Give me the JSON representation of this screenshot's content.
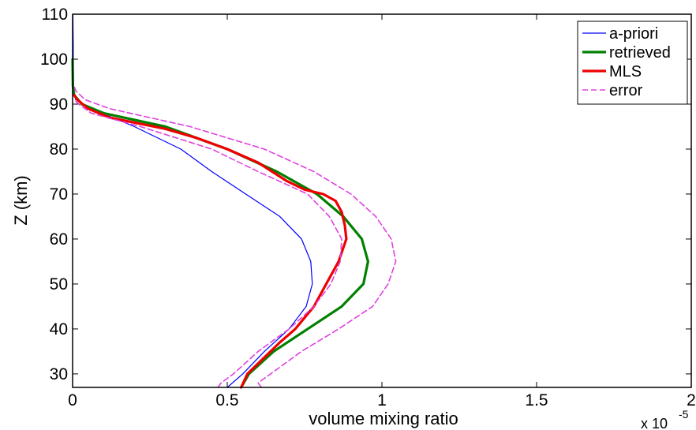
{
  "chart_data": {
    "type": "line",
    "xlabel": "volume mixing ratio",
    "ylabel": "Z (km)",
    "x_exponent_base": "x 10",
    "x_exponent_power": "-5",
    "xlim": [
      0,
      2
    ],
    "ylim": [
      27,
      110
    ],
    "xticks": [
      0,
      0.5,
      1,
      1.5,
      2
    ],
    "xtick_labels": [
      "0",
      "0.5",
      "1",
      "1.5",
      "2"
    ],
    "yticks": [
      30,
      40,
      50,
      60,
      70,
      80,
      90,
      100,
      110
    ],
    "ytick_labels": [
      "30",
      "40",
      "50",
      "60",
      "70",
      "80",
      "90",
      "100",
      "110"
    ],
    "grid": false,
    "legend_position": "top-right",
    "series": [
      {
        "name": "a-priori",
        "color": "#0000ff",
        "style": "solid",
        "points": [
          [
            0.5,
            27
          ],
          [
            0.55,
            30
          ],
          [
            0.62,
            35
          ],
          [
            0.7,
            40
          ],
          [
            0.755,
            45
          ],
          [
            0.775,
            50
          ],
          [
            0.77,
            55
          ],
          [
            0.74,
            60
          ],
          [
            0.67,
            65
          ],
          [
            0.56,
            70
          ],
          [
            0.45,
            75
          ],
          [
            0.35,
            80
          ],
          [
            0.2,
            85
          ],
          [
            0.06,
            89
          ],
          [
            0.01,
            91
          ],
          [
            0.003,
            93
          ],
          [
            0.002,
            97
          ],
          [
            0.002,
            103
          ],
          [
            0.001,
            110
          ]
        ]
      },
      {
        "name": "retrieved",
        "color": "#008000",
        "style": "solid",
        "points": [
          [
            0.545,
            27
          ],
          [
            0.57,
            30
          ],
          [
            0.65,
            35
          ],
          [
            0.76,
            40
          ],
          [
            0.87,
            45
          ],
          [
            0.94,
            50
          ],
          [
            0.955,
            55
          ],
          [
            0.935,
            60
          ],
          [
            0.875,
            65
          ],
          [
            0.79,
            70
          ],
          [
            0.66,
            75
          ],
          [
            0.5,
            80
          ],
          [
            0.3,
            85
          ],
          [
            0.1,
            88
          ],
          [
            0.03,
            90
          ],
          [
            0.005,
            92
          ],
          [
            0.001,
            94
          ],
          [
            0.0,
            100
          ]
        ]
      },
      {
        "name": "MLS",
        "color": "#ee0000",
        "style": "solid",
        "points": [
          [
            0.545,
            27
          ],
          [
            0.565,
            30
          ],
          [
            0.61,
            33
          ],
          [
            0.67,
            37
          ],
          [
            0.72,
            40
          ],
          [
            0.78,
            45
          ],
          [
            0.82,
            50
          ],
          [
            0.86,
            55
          ],
          [
            0.885,
            60
          ],
          [
            0.88,
            63
          ],
          [
            0.87,
            66
          ],
          [
            0.85,
            68.5
          ],
          [
            0.81,
            70
          ],
          [
            0.75,
            71
          ],
          [
            0.69,
            73
          ],
          [
            0.6,
            77
          ],
          [
            0.5,
            80
          ],
          [
            0.4,
            82.5
          ],
          [
            0.3,
            84.5
          ],
          [
            0.12,
            87
          ],
          [
            0.05,
            89
          ],
          [
            0.015,
            91
          ],
          [
            0.005,
            92
          ]
        ]
      },
      {
        "name": "error",
        "color": "#e040e0",
        "style": "dashed",
        "points": [
          [
            0.47,
            27
          ],
          [
            0.48,
            28
          ],
          [
            0.52,
            30
          ],
          [
            0.6,
            35
          ],
          [
            0.7,
            40
          ],
          [
            0.78,
            45
          ],
          [
            0.835,
            50
          ],
          [
            0.865,
            55
          ],
          [
            0.87,
            60
          ],
          [
            0.83,
            65
          ],
          [
            0.76,
            70
          ],
          [
            0.6,
            75
          ],
          [
            0.45,
            80
          ],
          [
            0.22,
            85
          ],
          [
            0.06,
            88
          ],
          [
            0.02,
            90
          ],
          [
            0.005,
            91
          ]
        ]
      },
      {
        "name": "",
        "color": "#e040e0",
        "style": "dashed",
        "points": [
          [
            0.61,
            27
          ],
          [
            0.6,
            28
          ],
          [
            0.64,
            30
          ],
          [
            0.74,
            35
          ],
          [
            0.86,
            40
          ],
          [
            0.97,
            45
          ],
          [
            1.02,
            50
          ],
          [
            1.045,
            55
          ],
          [
            1.03,
            60
          ],
          [
            0.98,
            65
          ],
          [
            0.9,
            70
          ],
          [
            0.78,
            75
          ],
          [
            0.62,
            80
          ],
          [
            0.38,
            85
          ],
          [
            0.12,
            89
          ],
          [
            0.04,
            91
          ],
          [
            0.01,
            93
          ],
          [
            0.005,
            94
          ]
        ]
      }
    ]
  }
}
